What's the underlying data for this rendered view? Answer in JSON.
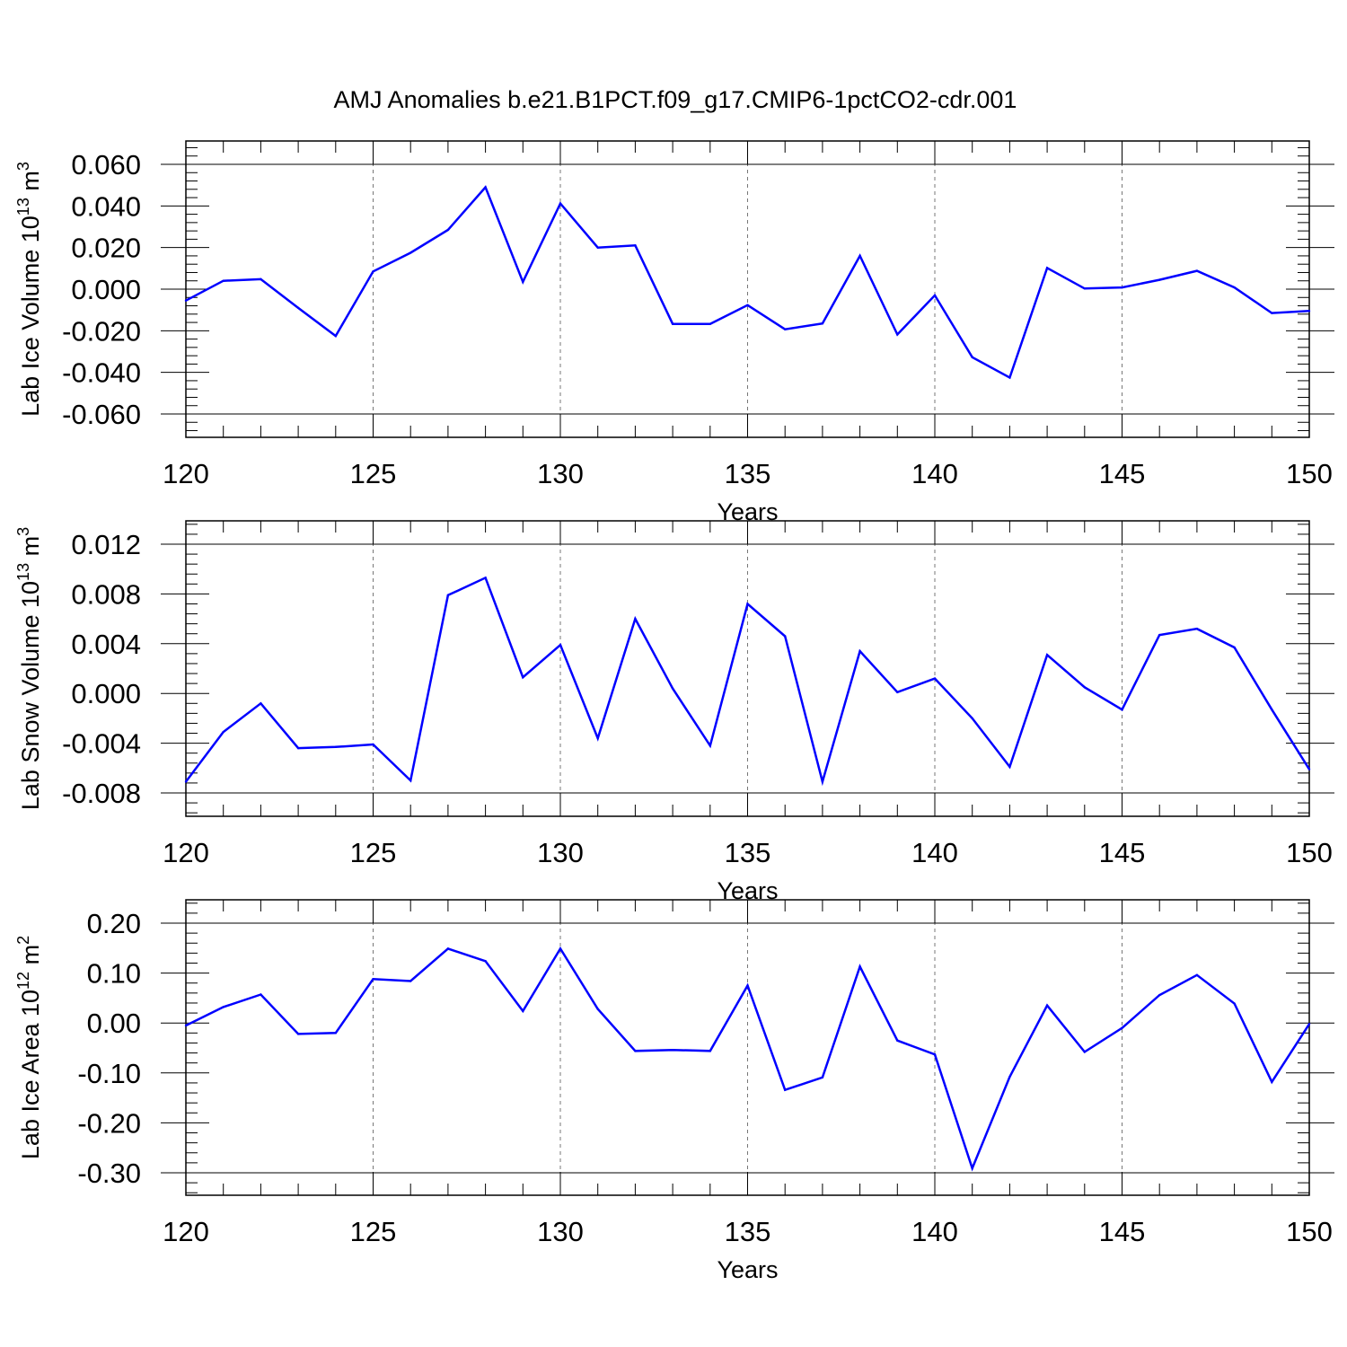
{
  "title": "AMJ Anomalies b.e21.B1PCT.f09_g17.CMIP6-1pctCO2-cdr.001",
  "line_color": "#0000ff",
  "chart_data": [
    {
      "type": "line",
      "ylabel": "Lab Ice Volume 10",
      "ylabel_exp": "13",
      "ylabel_unit": " m",
      "ylabel_unit_exp": "3",
      "xlabel": "Years",
      "xlim": [
        120,
        150
      ],
      "ylim": [
        -0.06,
        0.06
      ],
      "xticks": [
        120,
        125,
        130,
        135,
        140,
        145,
        150
      ],
      "yticks": [
        0.06,
        0.04,
        0.02,
        0.0,
        -0.02,
        -0.04,
        -0.06
      ],
      "ytick_labels": [
        "0.060",
        "0.040",
        "0.020",
        "0.000",
        "-0.020",
        "-0.040",
        "-0.060"
      ],
      "grid_x": [
        125,
        130,
        135,
        140,
        145
      ],
      "x": [
        120,
        121,
        122,
        123,
        124,
        125,
        126,
        127,
        128,
        129,
        130,
        131,
        132,
        133,
        134,
        135,
        136,
        137,
        138,
        139,
        140,
        141,
        142,
        143,
        144,
        145,
        146,
        147,
        148,
        149,
        150
      ],
      "y": [
        -0.0055,
        0.004,
        0.0048,
        -0.009,
        -0.0225,
        0.0085,
        0.0175,
        0.0285,
        0.049,
        0.0035,
        0.0412,
        0.02,
        0.021,
        -0.0167,
        -0.0167,
        -0.0077,
        -0.0193,
        -0.0165,
        0.016,
        -0.0218,
        -0.003,
        -0.0327,
        -0.0425,
        0.0102,
        0.0003,
        0.0008,
        0.0045,
        0.0088,
        0.0008,
        -0.0115,
        -0.0105
      ]
    },
    {
      "type": "line",
      "ylabel": "Lab Snow Volume 10",
      "ylabel_exp": "13",
      "ylabel_unit": " m",
      "ylabel_unit_exp": "3",
      "xlabel": "Years",
      "xlim": [
        120,
        150
      ],
      "ylim": [
        -0.009,
        0.0118
      ],
      "xticks": [
        120,
        125,
        130,
        135,
        140,
        145,
        150
      ],
      "yticks": [
        0.012,
        0.008,
        0.004,
        0.0,
        -0.004,
        -0.008
      ],
      "ytick_labels": [
        "0.012",
        "0.008",
        "0.004",
        "0.000",
        "-0.004",
        "-0.008"
      ],
      "grid_x": [
        125,
        130,
        135,
        140,
        145
      ],
      "x": [
        120,
        121,
        122,
        123,
        124,
        125,
        126,
        127,
        128,
        129,
        130,
        131,
        132,
        133,
        134,
        135,
        136,
        137,
        138,
        139,
        140,
        141,
        142,
        143,
        144,
        145,
        146,
        147,
        148,
        149,
        150
      ],
      "y": [
        -0.0071,
        -0.0031,
        -0.0008,
        -0.0044,
        -0.0043,
        -0.0041,
        -0.007,
        0.0079,
        0.0093,
        0.0013,
        0.0039,
        -0.0036,
        0.006,
        0.0004,
        -0.0042,
        0.0072,
        0.0046,
        -0.0071,
        0.0034,
        0.0001,
        0.0012,
        -0.002,
        -0.0059,
        0.0031,
        0.0005,
        -0.0013,
        0.0047,
        0.0052,
        0.0037,
        -0.0013,
        -0.0061
      ]
    },
    {
      "type": "line",
      "ylabel": "Lab Ice Area 10",
      "ylabel_exp": "12",
      "ylabel_unit": " m",
      "ylabel_unit_exp": "2",
      "xlabel": "Years",
      "xlim": [
        120,
        150
      ],
      "ylim": [
        -0.3,
        0.2
      ],
      "xticks": [
        120,
        125,
        130,
        135,
        140,
        145,
        150
      ],
      "yticks": [
        0.2,
        0.1,
        0.0,
        -0.1,
        -0.2,
        -0.3
      ],
      "ytick_labels": [
        "0.20",
        "0.10",
        "0.00",
        "-0.10",
        "-0.20",
        "-0.30"
      ],
      "grid_x": [
        125,
        130,
        135,
        140,
        145
      ],
      "x": [
        120,
        121,
        122,
        123,
        124,
        125,
        126,
        127,
        128,
        129,
        130,
        131,
        132,
        133,
        134,
        135,
        136,
        137,
        138,
        139,
        140,
        141,
        142,
        143,
        144,
        145,
        146,
        147,
        148,
        149,
        150
      ],
      "y": [
        -0.005,
        0.032,
        0.057,
        -0.022,
        -0.02,
        0.088,
        0.084,
        0.149,
        0.124,
        0.024,
        0.149,
        0.028,
        -0.056,
        -0.054,
        -0.056,
        0.075,
        -0.134,
        -0.109,
        0.113,
        -0.035,
        -0.063,
        -0.291,
        -0.108,
        0.035,
        -0.058,
        -0.01,
        0.056,
        0.096,
        0.039,
        -0.118,
        -0.002
      ]
    }
  ]
}
